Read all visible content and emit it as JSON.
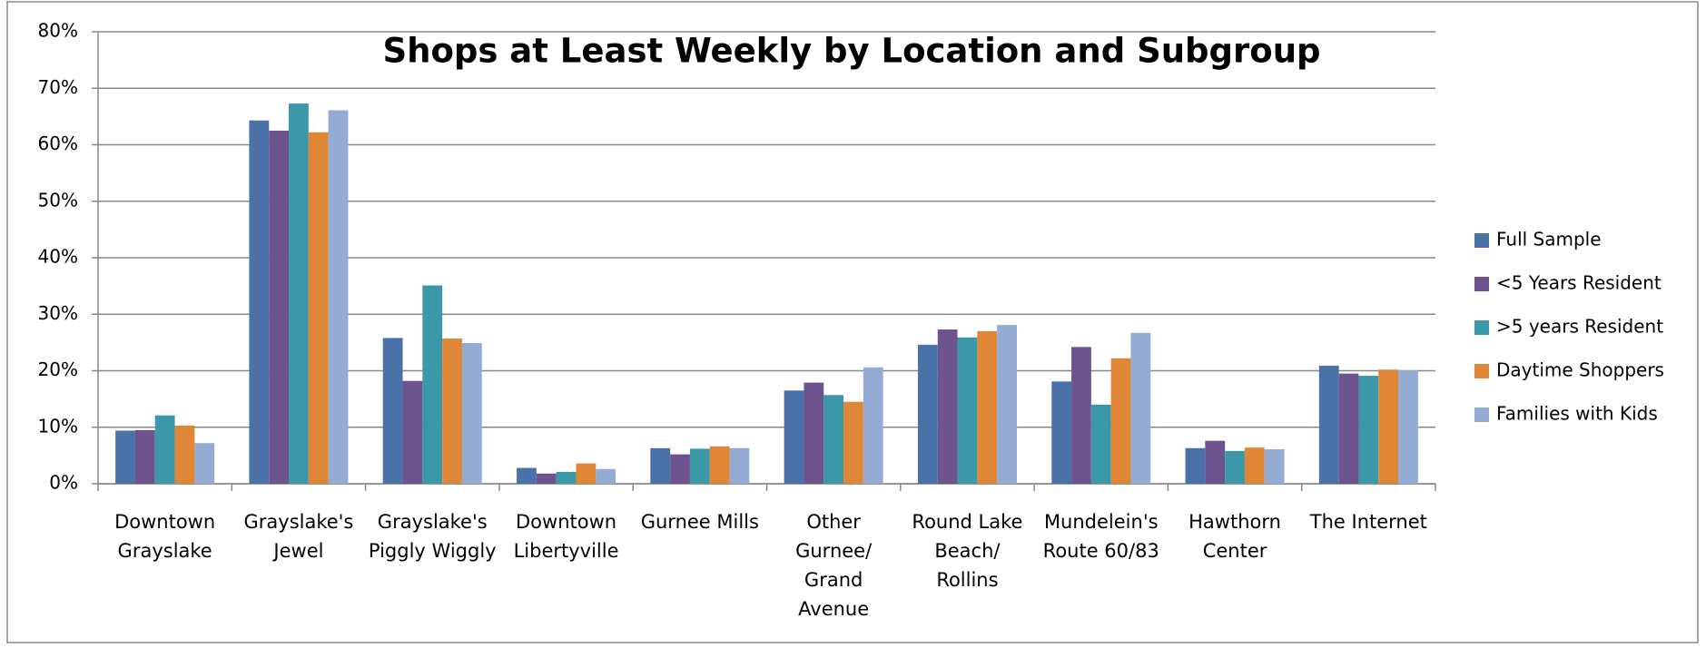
{
  "chart_data": {
    "type": "bar",
    "title": "Shops at Least Weekly by Location and Subgroup",
    "categories": [
      "Downtown Grayslake",
      "Grayslake's Jewel",
      "Grayslake's Piggly Wiggly",
      "Downtown Libertyville",
      "Gurnee Mills",
      "Other Gurnee/ Grand Avenue",
      "Round Lake Beach/ Rollins",
      "Mundelein's Route 60/83",
      "Hawthorn Center",
      "The Internet"
    ],
    "series": [
      {
        "name": "Full Sample",
        "color": "#4a72a8",
        "values": [
          9.4,
          64.3,
          25.8,
          2.8,
          6.3,
          16.5,
          24.6,
          18.1,
          6.3,
          20.9
        ]
      },
      {
        "name": "<5 Years Resident",
        "color": "#6e548f",
        "values": [
          9.5,
          62.5,
          18.2,
          1.8,
          5.2,
          17.9,
          27.3,
          24.2,
          7.6,
          19.5
        ]
      },
      {
        "name": ">5 years Resident",
        "color": "#3b98a9",
        "values": [
          12.1,
          67.3,
          35.1,
          2.1,
          6.2,
          15.7,
          25.9,
          14.0,
          5.8,
          19.1
        ]
      },
      {
        "name": "Daytime Shoppers",
        "color": "#e08637",
        "values": [
          10.3,
          62.2,
          25.7,
          3.6,
          6.6,
          14.5,
          27.0,
          22.2,
          6.4,
          20.2
        ]
      },
      {
        "name": "Families with Kids",
        "color": "#94abd4",
        "values": [
          7.2,
          66.1,
          24.9,
          2.6,
          6.3,
          20.6,
          28.1,
          26.7,
          6.1,
          20.1
        ]
      }
    ],
    "ylim": [
      0,
      80
    ],
    "yticks": [
      {
        "value": 0,
        "label": "0%"
      },
      {
        "value": 10,
        "label": "10%"
      },
      {
        "value": 20,
        "label": "20%"
      },
      {
        "value": 30,
        "label": "30%"
      },
      {
        "value": 40,
        "label": "40%"
      },
      {
        "value": 50,
        "label": "50%"
      },
      {
        "value": 60,
        "label": "60%"
      },
      {
        "value": 70,
        "label": "70%"
      },
      {
        "value": 80,
        "label": "80%"
      }
    ],
    "grid": true,
    "legend": "right"
  }
}
